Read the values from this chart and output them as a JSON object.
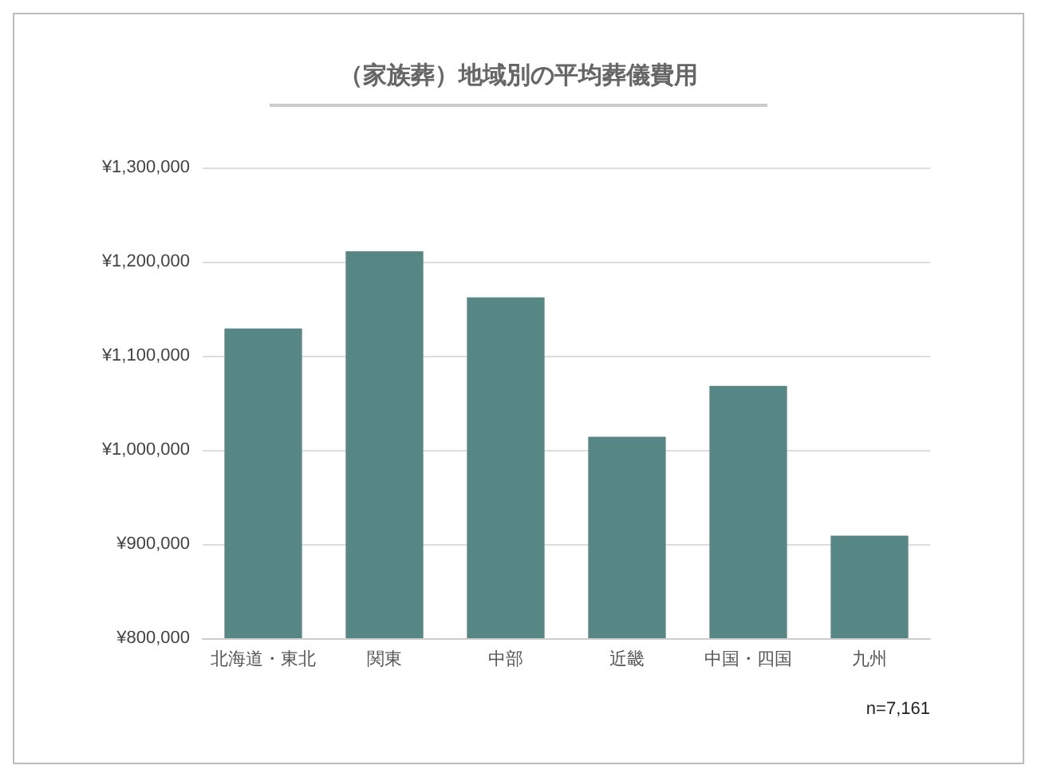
{
  "chart_data": {
    "type": "bar",
    "title": "（家族葬）地域別の平均葬儀費用",
    "categories": [
      "北海道・東北",
      "関東",
      "中部",
      "近畿",
      "中国・四国",
      "九州"
    ],
    "values": [
      1129000,
      1211000,
      1162000,
      1014000,
      1068000,
      909000
    ],
    "color": "#568784",
    "ylim": [
      800000,
      1300000
    ],
    "yticks": [
      {
        "value": 800000,
        "label": "¥800,000"
      },
      {
        "value": 900000,
        "label": "¥900,000"
      },
      {
        "value": 1000000,
        "label": "¥1,000,000"
      },
      {
        "value": 1100000,
        "label": "¥1,100,000"
      },
      {
        "value": 1200000,
        "label": "¥1,200,000"
      },
      {
        "value": 1300000,
        "label": "¥1,300,000"
      }
    ],
    "grid": "y",
    "annotations": [
      "n=7,161"
    ]
  }
}
